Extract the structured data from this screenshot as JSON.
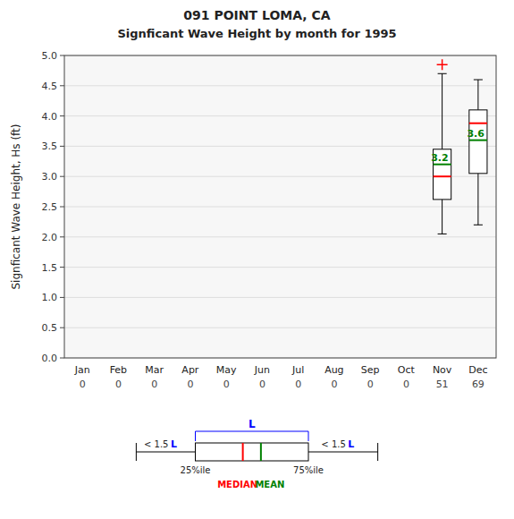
{
  "chart_data": {
    "type": "box",
    "title": "091   POINT LOMA, CA",
    "subtitle": "Signficant Wave Height by month for 1995",
    "y_label": "Signficant Wave Height, Hs (ft)",
    "categories": [
      "Jan",
      "Feb",
      "Mar",
      "Apr",
      "May",
      "Jun",
      "Jul",
      "Aug",
      "Sep",
      "Oct",
      "Nov",
      "Dec"
    ],
    "counts": [
      0,
      0,
      0,
      0,
      0,
      0,
      0,
      0,
      0,
      0,
      51,
      69
    ],
    "boxes": {
      "q1": [
        null,
        null,
        null,
        null,
        null,
        null,
        null,
        null,
        null,
        null,
        2.62,
        3.05
      ],
      "q3": [
        null,
        null,
        null,
        null,
        null,
        null,
        null,
        null,
        null,
        null,
        3.45,
        4.1
      ],
      "whisker_low": [
        null,
        null,
        null,
        null,
        null,
        null,
        null,
        null,
        null,
        null,
        2.05,
        2.2
      ],
      "whisker_high": [
        null,
        null,
        null,
        null,
        null,
        null,
        null,
        null,
        null,
        null,
        4.7,
        4.6
      ],
      "color": "black"
    },
    "series": [
      {
        "name": "MEDIAN",
        "color": "red",
        "values": [
          null,
          null,
          null,
          null,
          null,
          null,
          null,
          null,
          null,
          null,
          3.0,
          3.88
        ]
      },
      {
        "name": "MEAN",
        "color": "green",
        "values": [
          null,
          null,
          null,
          null,
          null,
          null,
          null,
          null,
          null,
          null,
          3.2,
          3.6
        ]
      }
    ],
    "outliers": {
      "values": [
        [],
        [],
        [],
        [],
        [],
        [],
        [],
        [],
        [],
        [],
        [
          4.85
        ],
        []
      ],
      "color": "red",
      "marker": "+"
    },
    "annotations": [
      "L",
      "< 1.5 ",
      "L",
      "< 1.5 ",
      "L",
      "25%ile",
      "75%ile"
    ],
    "data_labels": true,
    "grid": true,
    "ylim": [
      0.0,
      5.0
    ],
    "yticks": [
      {
        "value": 0.0,
        "label": "0.0"
      },
      0.5,
      {
        "value": 1.0,
        "label": "1.0"
      },
      1.5,
      {
        "value": 2.0,
        "label": "2.0"
      },
      2.5,
      {
        "value": 3.0,
        "label": "3.0"
      },
      3.5,
      {
        "value": 4.0,
        "label": "4.0"
      },
      4.5,
      {
        "value": 5.0,
        "label": "5.0"
      }
    ]
  }
}
